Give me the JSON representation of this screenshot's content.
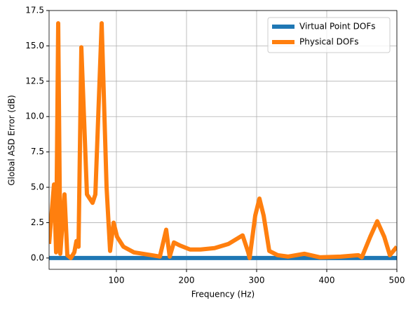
{
  "chart_data": {
    "type": "line",
    "xlabel": "Frequency (Hz)",
    "ylabel": "Global ASD Error (dB)",
    "x": [
      4,
      11,
      14,
      17,
      20,
      26,
      30,
      35,
      40,
      43,
      46,
      50,
      58,
      62,
      66,
      70,
      79,
      86,
      91,
      96,
      101,
      110,
      125,
      150,
      162,
      171,
      176,
      182,
      190,
      205,
      220,
      240,
      260,
      280,
      288,
      290,
      298,
      304,
      310,
      318,
      330,
      345,
      368,
      390,
      420,
      445,
      450,
      462,
      472,
      482,
      490,
      500
    ],
    "series": [
      {
        "name": "Virtual Point DOFs",
        "color": "#1f77b4",
        "values": [
          0,
          0,
          0,
          0,
          0,
          0,
          0,
          0,
          0,
          0,
          0,
          0,
          0,
          0,
          0,
          0,
          0,
          0,
          0,
          0,
          0,
          0,
          0,
          0,
          0,
          0,
          0,
          0,
          0,
          0,
          0,
          0,
          0,
          0,
          0,
          0,
          0,
          0,
          0,
          0,
          0,
          0,
          0,
          0,
          0,
          0,
          0,
          0,
          0,
          0,
          0,
          0
        ]
      },
      {
        "name": "Physical DOFs",
        "color": "#ff7f0e",
        "values": [
          1.0,
          5.2,
          0.4,
          16.6,
          0.3,
          4.5,
          0.2,
          0.0,
          0.4,
          1.2,
          0.8,
          14.9,
          4.5,
          4.2,
          3.9,
          4.5,
          16.6,
          5.0,
          0.5,
          2.5,
          1.5,
          0.8,
          0.4,
          0.2,
          0.1,
          2.0,
          0.1,
          1.1,
          0.9,
          0.6,
          0.6,
          0.7,
          1.0,
          1.6,
          0.4,
          0.0,
          3.0,
          4.2,
          3.0,
          0.5,
          0.2,
          0.1,
          0.3,
          0.05,
          0.1,
          0.2,
          0.05,
          1.5,
          2.6,
          1.5,
          0.2,
          0.8
        ]
      }
    ],
    "xlim": [
      4,
      500
    ],
    "ylim": [
      -0.8,
      17.5
    ],
    "xticks": [
      100,
      200,
      300,
      400,
      500
    ],
    "yticks": [
      {
        "value": 0,
        "label": "0.0"
      },
      2.5,
      {
        "value": 5,
        "label": "5.0"
      },
      7.5,
      {
        "value": 10,
        "label": "10.0"
      },
      12.5,
      {
        "value": 15,
        "label": "15.0"
      },
      17.5
    ],
    "grid": true,
    "legend": "upper right"
  }
}
